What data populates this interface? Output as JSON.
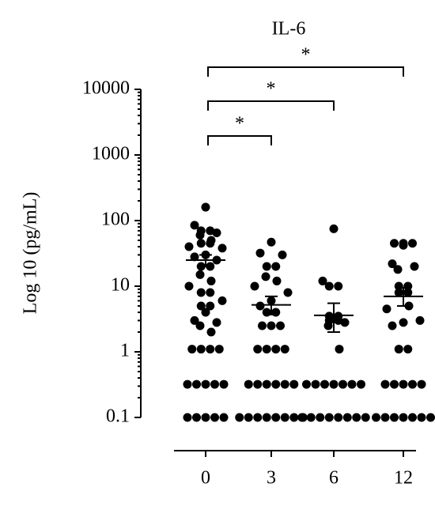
{
  "chart_data": {
    "type": "dotplot",
    "title": "IL-6",
    "y_label": "Log 10 (pg/mL)",
    "log_y": true,
    "color": "#000000",
    "categories": [
      "0",
      "3",
      "6",
      "12"
    ],
    "values": [
      [
        160,
        85,
        70,
        70,
        65,
        60,
        50,
        45,
        45,
        40,
        38,
        30,
        28,
        25,
        20,
        20,
        15,
        12,
        10,
        8,
        8,
        6,
        5,
        5,
        4,
        3,
        2.8,
        2.5,
        2,
        1.1,
        1.1,
        1.1,
        1.1,
        0.32,
        0.32,
        0.32,
        0.32,
        0.32,
        0.1,
        0.1,
        0.1,
        0.1,
        0.1
      ],
      [
        47,
        32,
        30,
        20,
        20,
        14,
        12,
        10,
        8,
        6,
        5,
        4,
        4,
        2.5,
        2.5,
        2.5,
        1.1,
        1.1,
        1.1,
        1.1,
        0.32,
        0.32,
        0.32,
        0.32,
        0.32,
        0.32,
        0.1,
        0.1,
        0.1,
        0.1,
        0.1,
        0.1,
        0.1,
        0.1
      ],
      [
        75,
        12,
        10,
        10,
        3.5,
        3.5,
        3,
        3,
        2.8,
        2.5,
        1.1,
        0.32,
        0.32,
        0.32,
        0.32,
        0.32,
        0.32,
        0.32,
        0.1,
        0.1,
        0.1,
        0.1,
        0.1,
        0.1,
        0.1,
        0.1
      ],
      [
        45,
        45,
        45,
        42,
        22,
        20,
        18,
        10,
        10,
        8,
        8,
        5,
        4.5,
        3,
        2.8,
        2.5,
        1.1,
        1.1,
        0.32,
        0.32,
        0.32,
        0.32,
        0.32,
        0.1,
        0.1,
        0.1,
        0.1,
        0.1,
        0.1,
        0.1
      ]
    ],
    "mean": [
      25,
      5.2,
      3.6,
      7
    ],
    "error_low": [
      20,
      3.7,
      2,
      5
    ],
    "error_high": [
      30,
      7,
      5.5,
      9.5
    ],
    "ylim": [
      0.1,
      10000
    ],
    "yticks": [
      0.1,
      1,
      10,
      100,
      1000,
      10000
    ],
    "annotations": [
      {
        "text": "*",
        "between": [
          "0",
          "3"
        ]
      },
      {
        "text": "*",
        "between": [
          "0",
          "6"
        ]
      },
      {
        "text": "*",
        "between": [
          "0",
          "12"
        ]
      }
    ]
  }
}
